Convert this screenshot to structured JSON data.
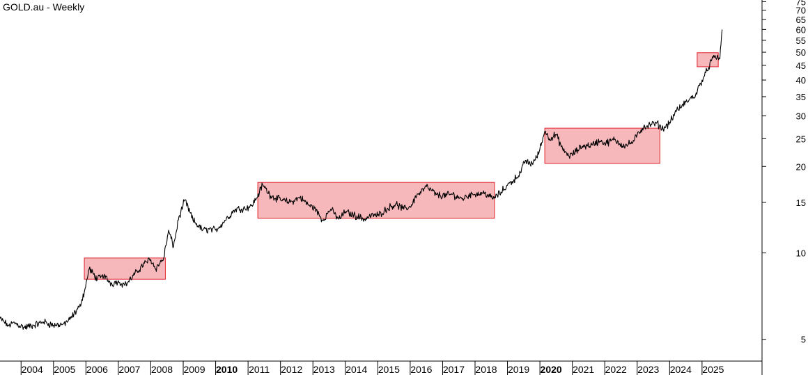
{
  "chart_data": {
    "type": "line",
    "title": "GOLD.au - Weekly",
    "xlabel": "",
    "ylabel": "",
    "y_scale": "log",
    "grid": false,
    "xlim": [
      2003.35,
      2026.85
    ],
    "ylim": [
      4.2,
      76
    ],
    "y_ticks": [
      5,
      10,
      15,
      20,
      25,
      30,
      35,
      40,
      45,
      50,
      55,
      60,
      65,
      70,
      75
    ],
    "x_ticks": [
      {
        "label": "2004",
        "value": 2004.0,
        "bold": false
      },
      {
        "label": "2005",
        "value": 2005.0,
        "bold": false
      },
      {
        "label": "2006",
        "value": 2006.0,
        "bold": false
      },
      {
        "label": "2007",
        "value": 2007.0,
        "bold": false
      },
      {
        "label": "2008",
        "value": 2008.0,
        "bold": false
      },
      {
        "label": "2009",
        "value": 2009.0,
        "bold": false
      },
      {
        "label": "2010",
        "value": 2010.0,
        "bold": true
      },
      {
        "label": "2011",
        "value": 2011.0,
        "bold": false
      },
      {
        "label": "2012",
        "value": 2012.0,
        "bold": false
      },
      {
        "label": "2013",
        "value": 2013.0,
        "bold": false
      },
      {
        "label": "2014",
        "value": 2014.0,
        "bold": false
      },
      {
        "label": "2015",
        "value": 2015.0,
        "bold": false
      },
      {
        "label": "2016",
        "value": 2016.0,
        "bold": false
      },
      {
        "label": "2017",
        "value": 2017.0,
        "bold": false
      },
      {
        "label": "2018",
        "value": 2018.0,
        "bold": false
      },
      {
        "label": "2019",
        "value": 2019.0,
        "bold": false
      },
      {
        "label": "2020",
        "value": 2020.0,
        "bold": true
      },
      {
        "label": "2021",
        "value": 2021.0,
        "bold": false
      },
      {
        "label": "2022",
        "value": 2022.0,
        "bold": false
      },
      {
        "label": "2023",
        "value": 2023.0,
        "bold": false
      },
      {
        "label": "2024",
        "value": 2024.0,
        "bold": false
      },
      {
        "label": "2025",
        "value": 2025.0,
        "bold": false
      }
    ],
    "series": [
      {
        "color": "#000000",
        "x": [
          2003.35,
          2003.6,
          2003.8,
          2004.1,
          2004.4,
          2004.7,
          2005.0,
          2005.3,
          2005.5,
          2005.8,
          2005.95,
          2006.05,
          2006.1,
          2006.35,
          2006.55,
          2006.8,
          2007.0,
          2007.2,
          2007.5,
          2007.8,
          2008.0,
          2008.15,
          2008.4,
          2008.55,
          2008.7,
          2008.85,
          2009.05,
          2009.3,
          2009.6,
          2009.9,
          2010.0,
          2010.3,
          2010.6,
          2010.9,
          2011.1,
          2011.25,
          2011.45,
          2011.7,
          2012.0,
          2012.3,
          2012.6,
          2012.9,
          2013.05,
          2013.3,
          2013.55,
          2013.8,
          2014.0,
          2014.3,
          2014.6,
          2014.85,
          2015.0,
          2015.3,
          2015.55,
          2015.8,
          2016.0,
          2016.2,
          2016.5,
          2016.8,
          2017.0,
          2017.3,
          2017.6,
          2017.9,
          2018.0,
          2018.3,
          2018.55,
          2018.8,
          2019.0,
          2019.2,
          2019.4,
          2019.55,
          2019.7,
          2019.9,
          2020.0,
          2020.15,
          2020.3,
          2020.5,
          2020.7,
          2020.9,
          2021.0,
          2021.3,
          2021.6,
          2021.9,
          2022.0,
          2022.3,
          2022.6,
          2022.9,
          2023.0,
          2023.2,
          2023.45,
          2023.6,
          2023.8,
          2024.0,
          2024.2,
          2024.5,
          2024.8,
          2025.0,
          2025.15,
          2025.3,
          2025.42,
          2025.55,
          2025.62
        ],
        "values": [
          5.9,
          5.6,
          5.7,
          5.5,
          5.6,
          5.75,
          5.6,
          5.65,
          5.85,
          6.5,
          7.3,
          8.2,
          8.8,
          8.1,
          8.3,
          7.8,
          8.0,
          7.7,
          8.4,
          9.2,
          9.5,
          8.8,
          9.6,
          12.0,
          10.5,
          13.0,
          15.3,
          13.0,
          12.0,
          12.1,
          12.0,
          13.0,
          14.2,
          14.3,
          14.6,
          15.4,
          17.3,
          15.8,
          15.3,
          15.0,
          15.6,
          14.6,
          14.3,
          13.0,
          14.2,
          13.1,
          13.9,
          13.5,
          13.1,
          13.6,
          13.5,
          14.3,
          14.8,
          14.2,
          14.5,
          15.8,
          17.0,
          16.0,
          15.8,
          16.0,
          15.4,
          16.1,
          16.0,
          16.2,
          15.4,
          16.3,
          17.2,
          18.0,
          19.0,
          21.0,
          20.3,
          21.5,
          23.0,
          26.5,
          25.0,
          25.8,
          23.0,
          21.7,
          22.0,
          23.5,
          23.8,
          24.7,
          24.0,
          24.8,
          23.5,
          24.5,
          25.8,
          27.5,
          28.0,
          28.3,
          27.0,
          28.5,
          31.0,
          33.5,
          35.5,
          40.0,
          43.0,
          47.0,
          48.0,
          47.5,
          60.0
        ]
      }
    ],
    "highlight_boxes": [
      {
        "color": "#f39aa0",
        "x_range": [
          2005.95,
          2008.45
        ],
        "y_range": [
          8.1,
          9.6
        ]
      },
      {
        "color": "#f39aa0",
        "x_range": [
          2011.3,
          2018.6
        ],
        "y_range": [
          13.2,
          17.6
        ]
      },
      {
        "color": "#f39aa0",
        "x_range": [
          2020.15,
          2023.7
        ],
        "y_range": [
          20.5,
          27.2
        ]
      },
      {
        "color": "#f39aa0",
        "x_range": [
          2024.85,
          2025.5
        ],
        "y_range": [
          44.5,
          49.8
        ]
      }
    ]
  }
}
